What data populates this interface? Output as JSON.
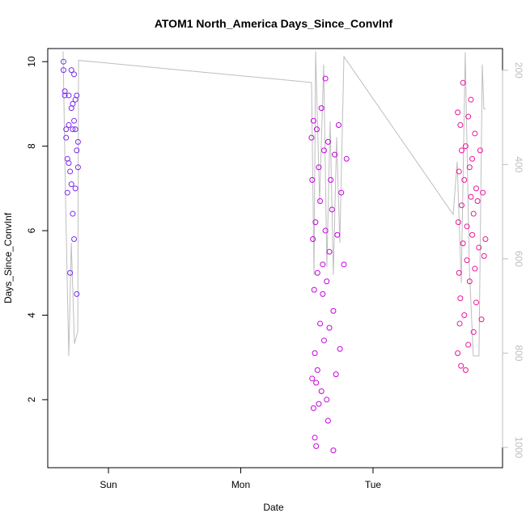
{
  "chart_data": {
    "type": "scatter",
    "title": "ATOM1 North_America Days_Since_ConvInf",
    "xlabel": "Date",
    "ylabel": "Days_Since_ConvInf",
    "xlim": [
      -0.459,
      2.979
    ],
    "xticks": [
      {
        "value": 0,
        "label": "Sun"
      },
      {
        "value": 1,
        "label": "Mon"
      },
      {
        "value": 2,
        "label": "Tue"
      }
    ],
    "ylim": [
      0.39,
      10.31
    ],
    "yticks": [
      2,
      4,
      6,
      8,
      10
    ],
    "y2lim": [
      1043,
      154
    ],
    "y2ticks": [
      200,
      400,
      600,
      800,
      1000
    ],
    "y2color": "#bebebe",
    "series": [
      {
        "color": "#7b2cf0",
        "x": [
          -0.34,
          -0.34,
          -0.33,
          -0.33,
          -0.32,
          -0.32,
          -0.31,
          -0.31,
          -0.3,
          -0.3,
          -0.3,
          -0.29,
          -0.29,
          -0.28,
          -0.28,
          -0.28,
          -0.27,
          -0.27,
          -0.27,
          -0.26,
          -0.26,
          -0.26,
          -0.25,
          -0.25,
          -0.25,
          -0.24,
          -0.24,
          -0.24,
          -0.23,
          -0.23
        ],
        "values": [
          10,
          9.8,
          9.3,
          9.2,
          8.4,
          8.2,
          7.7,
          6.9,
          9.2,
          8.5,
          7.6,
          5.0,
          7.4,
          9.8,
          8.9,
          7.1,
          9.0,
          6.4,
          8.4,
          9.7,
          8.6,
          5.8,
          9.1,
          7.0,
          8.4,
          4.5,
          9.2,
          7.9,
          7.5,
          8.1
        ]
      },
      {
        "color": "#c800e0",
        "x": [
          1.535,
          1.54,
          1.54,
          1.545,
          1.55,
          1.55,
          1.555,
          1.56,
          1.56,
          1.565,
          1.57,
          1.57,
          1.575,
          1.58,
          1.58,
          1.59,
          1.59,
          1.6,
          1.6,
          1.61,
          1.61,
          1.62,
          1.62,
          1.63,
          1.63,
          1.64,
          1.64,
          1.65,
          1.65,
          1.66,
          1.66,
          1.67,
          1.67,
          1.68,
          1.69,
          1.7,
          1.7,
          1.71,
          1.72,
          1.73,
          1.74,
          1.75,
          1.76,
          1.78,
          1.8
        ],
        "values": [
          8.2,
          7.2,
          2.5,
          5.8,
          8.6,
          1.8,
          4.6,
          3.1,
          1.1,
          6.2,
          2.4,
          0.9,
          8.4,
          5.0,
          2.7,
          7.5,
          1.9,
          3.8,
          6.7,
          8.9,
          2.2,
          5.2,
          4.5,
          7.9,
          3.4,
          9.6,
          6.0,
          4.8,
          2.0,
          8.1,
          1.5,
          5.5,
          3.7,
          7.2,
          6.5,
          4.1,
          0.8,
          7.8,
          2.6,
          5.9,
          8.5,
          3.2,
          6.9,
          5.2,
          7.7
        ]
      },
      {
        "color": "#f0149c",
        "x": [
          2.64,
          2.64,
          2.645,
          2.65,
          2.65,
          2.655,
          2.66,
          2.66,
          2.665,
          2.67,
          2.67,
          2.68,
          2.68,
          2.69,
          2.69,
          2.7,
          2.7,
          2.71,
          2.71,
          2.72,
          2.72,
          2.73,
          2.73,
          2.74,
          2.74,
          2.75,
          2.75,
          2.76,
          2.76,
          2.77,
          2.77,
          2.78,
          2.78,
          2.79,
          2.8,
          2.81,
          2.82,
          2.83,
          2.84,
          2.85
        ],
        "values": [
          8.8,
          3.1,
          6.2,
          5.0,
          7.4,
          3.8,
          8.5,
          4.4,
          2.8,
          6.6,
          7.9,
          9.5,
          5.7,
          4.0,
          7.2,
          2.7,
          8.0,
          6.1,
          5.3,
          8.7,
          3.3,
          7.5,
          4.8,
          6.8,
          9.1,
          5.9,
          7.7,
          3.6,
          6.4,
          8.3,
          5.1,
          7.0,
          4.3,
          6.7,
          5.6,
          7.9,
          3.9,
          6.9,
          5.4,
          5.8
        ]
      },
      {
        "type": "line",
        "axis": "y2",
        "color": "#bebebe",
        "x": [
          -0.343,
          -0.324,
          -0.3,
          -0.281,
          -0.257,
          -0.232,
          -0.226,
          1.535,
          1.554,
          1.566,
          1.596,
          1.627,
          1.651,
          1.676,
          1.7,
          1.725,
          1.749,
          1.78,
          2.606,
          2.636,
          2.667,
          2.697,
          2.728,
          2.758,
          2.801,
          2.826,
          2.838,
          2.85
        ],
        "values": [
          160,
          480,
          806,
          566,
          780,
          754,
          179,
          226,
          634,
          160,
          480,
          188,
          617,
          308,
          634,
          342,
          566,
          171,
          506,
          394,
          651,
          162,
          617,
          806,
          806,
          188,
          282,
          282
        ]
      }
    ]
  }
}
